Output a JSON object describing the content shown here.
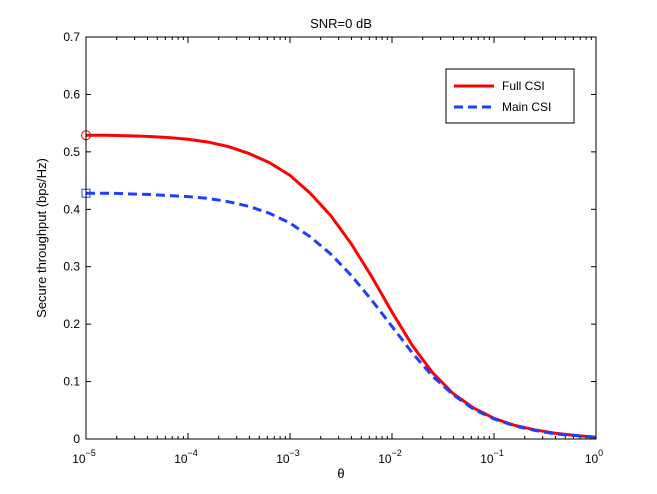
{
  "chart_data": {
    "type": "line",
    "title": "SNR=0 dB",
    "xlabel": "θ",
    "ylabel": "Secure throughput (bps/Hz)",
    "xscale": "log",
    "xlim": [
      1e-05,
      1
    ],
    "ylim": [
      0,
      0.7
    ],
    "grid": false,
    "legend_position": "top-right",
    "x_ticks": [
      {
        "value": 1e-05,
        "base": "10",
        "exp": "−5"
      },
      {
        "value": 0.0001,
        "base": "10",
        "exp": "−4"
      },
      {
        "value": 0.001,
        "base": "10",
        "exp": "−3"
      },
      {
        "value": 0.01,
        "base": "10",
        "exp": "−2"
      },
      {
        "value": 0.1,
        "base": "10",
        "exp": "−1"
      },
      {
        "value": 1,
        "base": "10",
        "exp": "0"
      }
    ],
    "y_ticks": [
      {
        "value": 0,
        "label": "0"
      },
      {
        "value": 0.1,
        "label": "0.1"
      },
      {
        "value": 0.2,
        "label": "0.2"
      },
      {
        "value": 0.3,
        "label": "0.3"
      },
      {
        "value": 0.4,
        "label": "0.4"
      },
      {
        "value": 0.5,
        "label": "0.5"
      },
      {
        "value": 0.6,
        "label": "0.6"
      },
      {
        "value": 0.7,
        "label": "0.7"
      }
    ],
    "series": [
      {
        "name": "Full CSI",
        "color": "#ff0000",
        "style": "solid",
        "start_marker": "circle",
        "points": [
          {
            "x": 1e-05,
            "y": 0.529
          },
          {
            "x": 1.58e-05,
            "y": 0.529
          },
          {
            "x": 2.51e-05,
            "y": 0.528
          },
          {
            "x": 3.98e-05,
            "y": 0.527
          },
          {
            "x": 6.31e-05,
            "y": 0.525
          },
          {
            "x": 0.0001,
            "y": 0.522
          },
          {
            "x": 0.000158,
            "y": 0.517
          },
          {
            "x": 0.000251,
            "y": 0.509
          },
          {
            "x": 0.000398,
            "y": 0.497
          },
          {
            "x": 0.000631,
            "y": 0.481
          },
          {
            "x": 0.001,
            "y": 0.459
          },
          {
            "x": 0.00158,
            "y": 0.428
          },
          {
            "x": 0.00251,
            "y": 0.389
          },
          {
            "x": 0.00398,
            "y": 0.34
          },
          {
            "x": 0.00631,
            "y": 0.283
          },
          {
            "x": 0.01,
            "y": 0.221
          },
          {
            "x": 0.0158,
            "y": 0.163
          },
          {
            "x": 0.0251,
            "y": 0.115
          },
          {
            "x": 0.0398,
            "y": 0.079
          },
          {
            "x": 0.0631,
            "y": 0.054
          },
          {
            "x": 0.1,
            "y": 0.036
          },
          {
            "x": 0.158,
            "y": 0.024
          },
          {
            "x": 0.251,
            "y": 0.016
          },
          {
            "x": 0.398,
            "y": 0.01
          },
          {
            "x": 0.631,
            "y": 0.006
          },
          {
            "x": 1,
            "y": 0.003
          }
        ]
      },
      {
        "name": "Main CSI",
        "color": "#1f3fff",
        "style": "dashed",
        "start_marker": "square",
        "points": [
          {
            "x": 1e-05,
            "y": 0.428
          },
          {
            "x": 1.58e-05,
            "y": 0.428
          },
          {
            "x": 2.51e-05,
            "y": 0.427
          },
          {
            "x": 3.98e-05,
            "y": 0.426
          },
          {
            "x": 6.31e-05,
            "y": 0.424
          },
          {
            "x": 0.0001,
            "y": 0.422
          },
          {
            "x": 0.000158,
            "y": 0.419
          },
          {
            "x": 0.000251,
            "y": 0.413
          },
          {
            "x": 0.000398,
            "y": 0.405
          },
          {
            "x": 0.000631,
            "y": 0.393
          },
          {
            "x": 0.001,
            "y": 0.376
          },
          {
            "x": 0.00158,
            "y": 0.352
          },
          {
            "x": 0.00251,
            "y": 0.322
          },
          {
            "x": 0.00398,
            "y": 0.285
          },
          {
            "x": 0.00631,
            "y": 0.242
          },
          {
            "x": 0.01,
            "y": 0.196
          },
          {
            "x": 0.0158,
            "y": 0.15
          },
          {
            "x": 0.0251,
            "y": 0.109
          },
          {
            "x": 0.0398,
            "y": 0.077
          },
          {
            "x": 0.0631,
            "y": 0.052
          },
          {
            "x": 0.1,
            "y": 0.035
          },
          {
            "x": 0.158,
            "y": 0.023
          },
          {
            "x": 0.251,
            "y": 0.015
          },
          {
            "x": 0.398,
            "y": 0.009
          },
          {
            "x": 0.631,
            "y": 0.006
          },
          {
            "x": 1,
            "y": 0.003
          }
        ]
      }
    ]
  }
}
